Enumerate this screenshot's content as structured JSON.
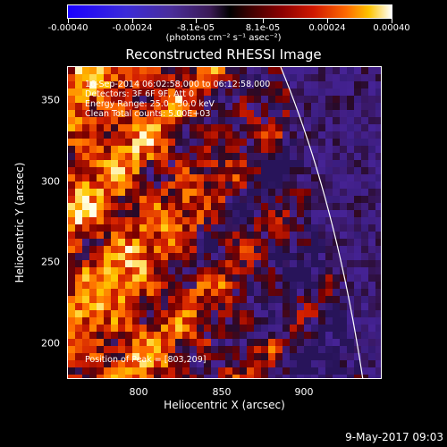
{
  "colorbar": {
    "tick_labels": [
      "-0.00040",
      "-0.00024",
      "-8.1e-05",
      "8.1e-05",
      "0.00024",
      "0.00040"
    ],
    "units": "(photons cm⁻² s⁻¹ asec⁻²)"
  },
  "title": "Reconstructed RHESSI Image",
  "info": {
    "time": "16-Sep-2014 06:02:58.000 to 06:12:58.000",
    "detectors": "Detectors: 3F 6F 9F, Att 0",
    "energy": "Energy Range: 25.0 - 50.0 keV",
    "clean": "Clean    Total counts: 5.00E+03",
    "peak": "Position of Peak = [803,209]"
  },
  "axes": {
    "x_ticks": [
      "800",
      "850",
      "900"
    ],
    "y_ticks": [
      "350",
      "300",
      "250",
      "200"
    ],
    "xlabel": "Heliocentric X (arcsec)",
    "ylabel": "Heliocentric Y (arcsec)"
  },
  "timestamp": "9-May-2017 09:03",
  "colors": {
    "background": "#000000",
    "limb": "#ffffff"
  }
}
